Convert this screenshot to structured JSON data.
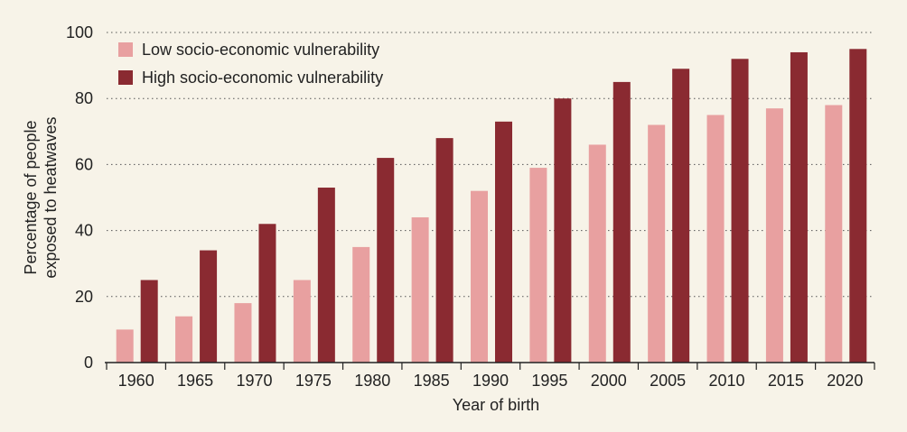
{
  "chart_data": {
    "type": "bar",
    "title": "",
    "xlabel": "Year of birth",
    "ylabel_lines": [
      "Percentage of people",
      "exposed to heatwaves"
    ],
    "ylim": [
      0,
      100
    ],
    "yticks": [
      0,
      20,
      40,
      60,
      80,
      100
    ],
    "grid": "horizontal dotted",
    "legend_position": "top-left",
    "categories": [
      "1960",
      "1965",
      "1970",
      "1975",
      "1980",
      "1985",
      "1990",
      "1995",
      "2000",
      "2005",
      "2010",
      "2015",
      "2020"
    ],
    "series": [
      {
        "name": "Low socio-economic vulnerability",
        "color": "#e8a0a0",
        "values": [
          10,
          14,
          18,
          25,
          35,
          44,
          52,
          59,
          66,
          72,
          75,
          77,
          78
        ]
      },
      {
        "name": "High socio-economic vulnerability",
        "color": "#8a2a31",
        "values": [
          25,
          34,
          42,
          53,
          62,
          68,
          73,
          80,
          85,
          89,
          92,
          94,
          95
        ]
      }
    ]
  }
}
